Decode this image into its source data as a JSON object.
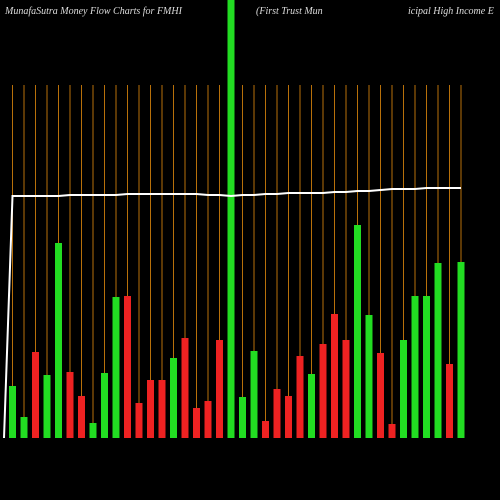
{
  "chart_data": {
    "type": "bar",
    "title_parts": [
      "MunafaSutra  Money Flow  Charts for FMHI",
      "(First Trust Mun",
      "icipal High Income  E"
    ],
    "categories": [
      null,
      null,
      null,
      null,
      null,
      null,
      null,
      null,
      null,
      null,
      null,
      null,
      null,
      null,
      null,
      null,
      null,
      null,
      null,
      null,
      null,
      null,
      null,
      null,
      null,
      null,
      null,
      null,
      null,
      null,
      null,
      null,
      null,
      null,
      null,
      null,
      null,
      null,
      null,
      null
    ],
    "values": [
      52,
      21,
      86,
      63,
      195,
      66,
      42,
      15,
      65,
      141,
      142,
      35,
      58,
      58,
      80,
      100,
      30,
      37,
      98,
      438,
      41,
      87,
      17,
      49,
      42,
      82,
      64,
      94,
      124,
      98,
      213,
      123,
      85,
      14,
      98,
      142,
      142,
      175,
      74,
      176
    ],
    "bar_colors": [
      "#22dd22",
      "#22dd22",
      "#ee2222",
      "#22dd22",
      "#22dd22",
      "#ee2222",
      "#ee2222",
      "#22dd22",
      "#22dd22",
      "#22dd22",
      "#ee2222",
      "#ee2222",
      "#ee2222",
      "#ee2222",
      "#22dd22",
      "#ee2222",
      "#ee2222",
      "#ee2222",
      "#ee2222",
      "#22dd22",
      "#22dd22",
      "#22dd22",
      "#ee2222",
      "#ee2222",
      "#ee2222",
      "#ee2222",
      "#22dd22",
      "#ee2222",
      "#ee2222",
      "#ee2222",
      "#22dd22",
      "#22dd22",
      "#ee2222",
      "#ee2222",
      "#22dd22",
      "#22dd22",
      "#22dd22",
      "#22dd22",
      "#ee2222",
      "#22dd22"
    ],
    "line_values": [
      242,
      242,
      242,
      242,
      242,
      243,
      243,
      243,
      243,
      243,
      244,
      244,
      244,
      244,
      244,
      244,
      244,
      243,
      243,
      242,
      243,
      243,
      244,
      244,
      245,
      245,
      245,
      245,
      246,
      246,
      247,
      247,
      248,
      249,
      249,
      249,
      250,
      250,
      250,
      250
    ],
    "line_color": "#ffffff",
    "grid_color": "#b8700a"
  }
}
